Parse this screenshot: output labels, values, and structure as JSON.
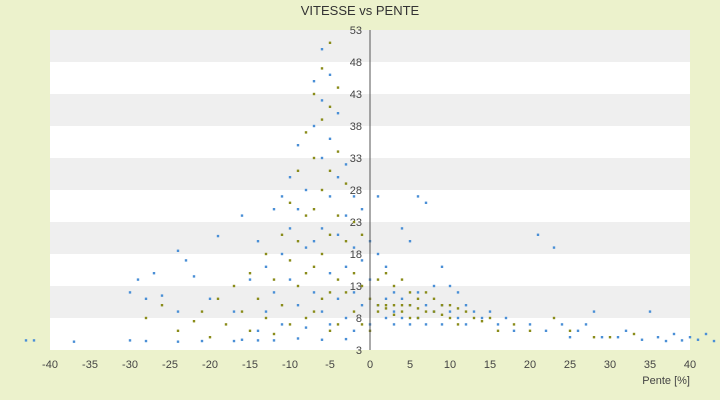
{
  "chart_data": {
    "type": "scatter",
    "title": "VITESSE vs PENTE",
    "xlabel": "Pente [%]",
    "ylabel": "",
    "xlim": [
      -40,
      40
    ],
    "ylim": [
      3,
      53
    ],
    "x_ticks": [
      "-40",
      "-35",
      "-30",
      "-25",
      "-20",
      "-15",
      "-10",
      "-5",
      "0",
      "5",
      "10",
      "15",
      "20",
      "25",
      "30",
      "35",
      "40"
    ],
    "y_ticks": [
      "3",
      "8",
      "13",
      "18",
      "23",
      "28",
      "33",
      "38",
      "43",
      "48",
      "53"
    ],
    "grid": "horizontal alternating bands",
    "legend": "none",
    "colors": {
      "series_a": "#4a8fd6",
      "series_b": "#8a8c1a",
      "band_light": "#ffffff",
      "band_dark": "#efefef",
      "background": "#ecf2cc"
    },
    "series": [
      {
        "values": [
          [
            -43,
            4.5
          ],
          [
            -42,
            4.5
          ],
          [
            -37,
            4.3
          ],
          [
            -30,
            4.5
          ],
          [
            -28,
            4.4
          ],
          [
            -24,
            4.3
          ],
          [
            -21,
            4.4
          ],
          [
            -17,
            4.4
          ],
          [
            -16,
            4.6
          ],
          [
            -14,
            4.5
          ],
          [
            -12,
            4.5
          ],
          [
            -9,
            4.8
          ],
          [
            -6,
            4.6
          ],
          [
            -3,
            4.7
          ],
          [
            -30,
            12
          ],
          [
            -29,
            14
          ],
          [
            -28,
            11
          ],
          [
            -27,
            15
          ],
          [
            -26,
            11.5
          ],
          [
            -24,
            9
          ],
          [
            -24,
            18.5
          ],
          [
            -23,
            17
          ],
          [
            -22,
            14.5
          ],
          [
            -20,
            11
          ],
          [
            -19,
            20.8
          ],
          [
            -17,
            9
          ],
          [
            -16,
            24
          ],
          [
            -15,
            14
          ],
          [
            -14,
            20
          ],
          [
            -14,
            6
          ],
          [
            -13,
            16
          ],
          [
            -13,
            9
          ],
          [
            -12,
            25
          ],
          [
            -12,
            12
          ],
          [
            -11,
            27
          ],
          [
            -11,
            18
          ],
          [
            -11,
            7
          ],
          [
            -10,
            22
          ],
          [
            -10,
            30
          ],
          [
            -10,
            14
          ],
          [
            -9,
            35
          ],
          [
            -9,
            25
          ],
          [
            -9,
            10
          ],
          [
            -8,
            28
          ],
          [
            -8,
            19
          ],
          [
            -8,
            6.5
          ],
          [
            -7,
            45
          ],
          [
            -7,
            38
          ],
          [
            -7,
            20
          ],
          [
            -7,
            12
          ],
          [
            -6,
            50
          ],
          [
            -6,
            42
          ],
          [
            -6,
            33
          ],
          [
            -6,
            22
          ],
          [
            -6,
            9
          ],
          [
            -5,
            46
          ],
          [
            -5,
            36
          ],
          [
            -5,
            27
          ],
          [
            -5,
            15
          ],
          [
            -5,
            7
          ],
          [
            -4,
            40
          ],
          [
            -4,
            30
          ],
          [
            -4,
            21
          ],
          [
            -4,
            11
          ],
          [
            -3,
            32
          ],
          [
            -3,
            24
          ],
          [
            -3,
            16
          ],
          [
            -3,
            8
          ],
          [
            -2,
            27
          ],
          [
            -2,
            19
          ],
          [
            -2,
            12
          ],
          [
            -2,
            6
          ],
          [
            -1,
            25
          ],
          [
            -1,
            17
          ],
          [
            -1,
            10
          ],
          [
            0,
            20
          ],
          [
            0,
            14
          ],
          [
            0,
            7
          ],
          [
            1,
            27
          ],
          [
            1,
            18
          ],
          [
            1,
            10
          ],
          [
            2,
            16
          ],
          [
            2,
            11
          ],
          [
            2,
            8
          ],
          [
            3,
            12
          ],
          [
            3,
            9
          ],
          [
            3,
            7
          ],
          [
            4,
            22
          ],
          [
            4,
            11
          ],
          [
            4,
            8
          ],
          [
            5,
            20
          ],
          [
            5,
            10
          ],
          [
            5,
            7
          ],
          [
            6,
            27
          ],
          [
            6,
            12
          ],
          [
            6,
            8
          ],
          [
            7,
            26
          ],
          [
            7,
            10
          ],
          [
            7,
            7
          ],
          [
            8,
            13
          ],
          [
            8,
            9
          ],
          [
            9,
            16
          ],
          [
            9,
            10
          ],
          [
            9,
            7
          ],
          [
            10,
            13
          ],
          [
            10,
            9
          ],
          [
            11,
            12
          ],
          [
            11,
            8
          ],
          [
            12,
            10
          ],
          [
            12,
            7
          ],
          [
            13,
            9
          ],
          [
            14,
            8
          ],
          [
            15,
            9
          ],
          [
            16,
            7
          ],
          [
            17,
            8
          ],
          [
            18,
            6
          ],
          [
            20,
            7
          ],
          [
            21,
            21
          ],
          [
            22,
            6
          ],
          [
            23,
            19
          ],
          [
            24,
            7
          ],
          [
            25,
            5
          ],
          [
            26,
            6
          ],
          [
            27,
            7
          ],
          [
            28,
            9
          ],
          [
            29,
            5
          ],
          [
            31,
            5
          ],
          [
            32,
            6
          ],
          [
            34,
            4.6
          ],
          [
            35,
            9
          ],
          [
            36,
            5
          ],
          [
            37,
            4.4
          ],
          [
            38,
            5.5
          ],
          [
            39,
            4.5
          ],
          [
            40,
            5
          ],
          [
            41,
            4.6
          ],
          [
            42,
            5.5
          ],
          [
            43,
            4.4
          ]
        ]
      },
      {
        "values": [
          [
            -28,
            8
          ],
          [
            -26,
            10
          ],
          [
            -24,
            6
          ],
          [
            -22,
            7.5
          ],
          [
            -21,
            9
          ],
          [
            -20,
            5
          ],
          [
            -19,
            11
          ],
          [
            -18,
            7
          ],
          [
            -17,
            13
          ],
          [
            -16,
            9
          ],
          [
            -15,
            15
          ],
          [
            -15,
            6
          ],
          [
            -14,
            11
          ],
          [
            -13,
            18
          ],
          [
            -13,
            8
          ],
          [
            -12,
            14
          ],
          [
            -12,
            5.5
          ],
          [
            -11,
            21
          ],
          [
            -11,
            10
          ],
          [
            -10,
            17
          ],
          [
            -10,
            26
          ],
          [
            -10,
            7
          ],
          [
            -9,
            31
          ],
          [
            -9,
            20
          ],
          [
            -9,
            13
          ],
          [
            -8,
            37
          ],
          [
            -8,
            24
          ],
          [
            -8,
            15
          ],
          [
            -8,
            8
          ],
          [
            -7,
            43
          ],
          [
            -7,
            33
          ],
          [
            -7,
            25
          ],
          [
            -7,
            16
          ],
          [
            -7,
            9
          ],
          [
            -6,
            47
          ],
          [
            -6,
            39
          ],
          [
            -6,
            28
          ],
          [
            -6,
            18
          ],
          [
            -6,
            11
          ],
          [
            -5,
            51
          ],
          [
            -5,
            41
          ],
          [
            -5,
            31
          ],
          [
            -5,
            21
          ],
          [
            -5,
            12
          ],
          [
            -5,
            6
          ],
          [
            -4,
            44
          ],
          [
            -4,
            34
          ],
          [
            -4,
            24
          ],
          [
            -4,
            14
          ],
          [
            -4,
            7
          ],
          [
            -3,
            29
          ],
          [
            -3,
            20
          ],
          [
            -3,
            12
          ],
          [
            -2,
            23
          ],
          [
            -2,
            15
          ],
          [
            -2,
            9
          ],
          [
            -1,
            21
          ],
          [
            -1,
            13
          ],
          [
            -1,
            7
          ],
          [
            0,
            11
          ],
          [
            0,
            6
          ],
          [
            1,
            14
          ],
          [
            1,
            10
          ],
          [
            1,
            9
          ],
          [
            2,
            15
          ],
          [
            2,
            10
          ],
          [
            2,
            9.5
          ],
          [
            3,
            13
          ],
          [
            3,
            10
          ],
          [
            3,
            8.5
          ],
          [
            4,
            14
          ],
          [
            4,
            10
          ],
          [
            4,
            9
          ],
          [
            5,
            12
          ],
          [
            5,
            10
          ],
          [
            5,
            8
          ],
          [
            6,
            11
          ],
          [
            6,
            9.5
          ],
          [
            6,
            8
          ],
          [
            7,
            12
          ],
          [
            7,
            9
          ],
          [
            8,
            11
          ],
          [
            8,
            9
          ],
          [
            9,
            10
          ],
          [
            9,
            8.5
          ],
          [
            10,
            10
          ],
          [
            10,
            8
          ],
          [
            11,
            9.5
          ],
          [
            11,
            7
          ],
          [
            12,
            9
          ],
          [
            13,
            8
          ],
          [
            14,
            7.5
          ],
          [
            15,
            8
          ],
          [
            16,
            6
          ],
          [
            18,
            7
          ],
          [
            20,
            6
          ],
          [
            23,
            8
          ],
          [
            25,
            6
          ],
          [
            28,
            5
          ],
          [
            30,
            5
          ],
          [
            33,
            5.5
          ]
        ]
      }
    ]
  }
}
